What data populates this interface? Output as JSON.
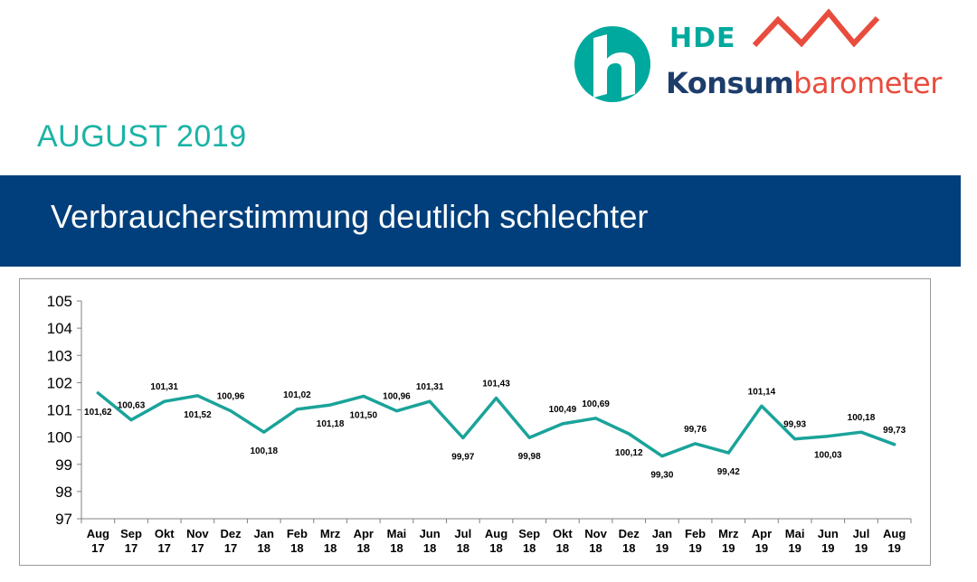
{
  "brand": {
    "hde": "HDE",
    "word_part1": "Konsum",
    "word_part2": "barometer",
    "teal": "#00a99d",
    "navy": "#1d3d6b",
    "red": "#e84c3d"
  },
  "header": {
    "month": "AUGUST 2019",
    "month_color": "#1ab3a6",
    "title": "Verbraucherstimmung deutlich schlechter",
    "banner_color": "#003f7b"
  },
  "chart_data": {
    "type": "line",
    "categories": [
      [
        "Aug",
        "17"
      ],
      [
        "Sep",
        "17"
      ],
      [
        "Okt",
        "17"
      ],
      [
        "Nov",
        "17"
      ],
      [
        "Dez",
        "17"
      ],
      [
        "Jan",
        "18"
      ],
      [
        "Feb",
        "18"
      ],
      [
        "Mrz",
        "18"
      ],
      [
        "Apr",
        "18"
      ],
      [
        "Mai",
        "18"
      ],
      [
        "Jun",
        "18"
      ],
      [
        "Jul",
        "18"
      ],
      [
        "Aug",
        "18"
      ],
      [
        "Sep",
        "18"
      ],
      [
        "Okt",
        "18"
      ],
      [
        "Nov",
        "18"
      ],
      [
        "Dez",
        "18"
      ],
      [
        "Jan",
        "19"
      ],
      [
        "Feb",
        "19"
      ],
      [
        "Mrz",
        "19"
      ],
      [
        "Apr",
        "19"
      ],
      [
        "Mai",
        "19"
      ],
      [
        "Jun",
        "19"
      ],
      [
        "Jul",
        "19"
      ],
      [
        "Aug",
        "19"
      ]
    ],
    "values": [
      101.62,
      100.63,
      101.31,
      101.52,
      100.96,
      100.18,
      101.02,
      101.18,
      101.5,
      100.96,
      101.31,
      99.97,
      101.43,
      99.98,
      100.49,
      100.69,
      100.12,
      99.3,
      99.76,
      99.42,
      101.14,
      99.93,
      100.03,
      100.18,
      99.73
    ],
    "labels": [
      "101,62",
      "100,63",
      "101,31",
      "101,52",
      "100,96",
      "100,18",
      "101,02",
      "101,18",
      "101,50",
      "100,96",
      "101,31",
      "99,97",
      "101,43",
      "99,98",
      "100,49",
      "100,69",
      "100,12",
      "99,30",
      "99,76",
      "99,42",
      "101,14",
      "99,93",
      "100,03",
      "100,18",
      "99,73"
    ],
    "label_position": [
      "below",
      "above",
      "above",
      "below",
      "above",
      "below",
      "above",
      "below",
      "below",
      "above",
      "above",
      "below",
      "above",
      "below",
      "above",
      "above",
      "below",
      "below",
      "above",
      "below",
      "above",
      "above",
      "below",
      "above",
      "above"
    ],
    "ylim": [
      97,
      105
    ],
    "yticks": [
      97,
      98,
      99,
      100,
      101,
      102,
      103,
      104,
      105
    ],
    "line_color": "#1aa39a",
    "grid": false
  }
}
